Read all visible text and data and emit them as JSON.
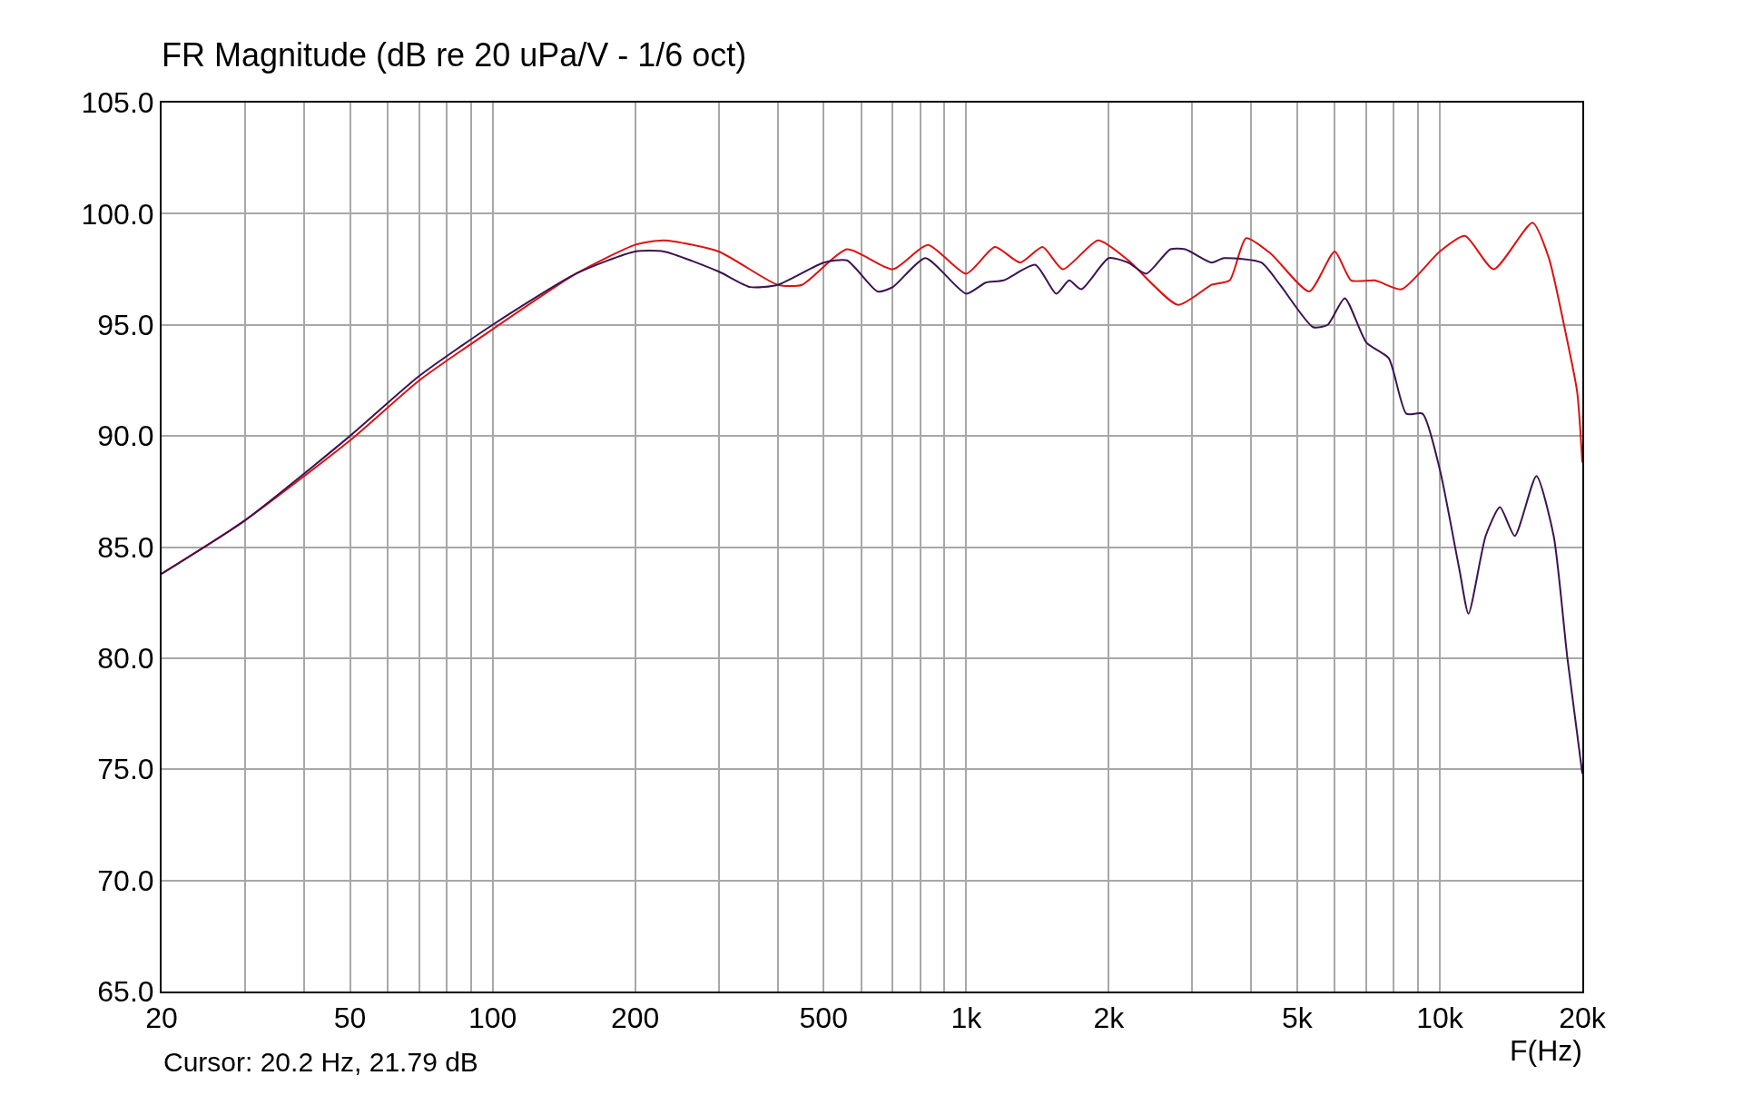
{
  "chart_data": {
    "type": "line",
    "title": "FR Magnitude (dB re 20 uPa/V - 1/6 oct)",
    "xlabel": "F(Hz)",
    "annotations": [
      "Cursor: 20.2 Hz, 21.79 dB"
    ],
    "log": "x",
    "grid": true,
    "line_style": "solid",
    "marker": "none",
    "xlim": [
      20,
      20000
    ],
    "ylim": [
      65,
      105
    ],
    "xticks": [
      20,
      {
        "value": 30,
        "label": null
      },
      {
        "value": 40,
        "label": null
      },
      50,
      {
        "value": 60,
        "label": null
      },
      {
        "value": 70,
        "label": null
      },
      {
        "value": 80,
        "label": null
      },
      {
        "value": 90,
        "label": null
      },
      100,
      200,
      {
        "value": 300,
        "label": null
      },
      {
        "value": 400,
        "label": null
      },
      500,
      {
        "value": 600,
        "label": null
      },
      {
        "value": 700,
        "label": null
      },
      {
        "value": 800,
        "label": null
      },
      {
        "value": 900,
        "label": null
      },
      {
        "value": 1000,
        "label": "1k"
      },
      {
        "value": 2000,
        "label": "2k"
      },
      {
        "value": 3000,
        "label": null
      },
      {
        "value": 4000,
        "label": null
      },
      {
        "value": 5000,
        "label": "5k"
      },
      {
        "value": 6000,
        "label": null
      },
      {
        "value": 7000,
        "label": null
      },
      {
        "value": 8000,
        "label": null
      },
      {
        "value": 9000,
        "label": null
      },
      {
        "value": 10000,
        "label": "10k"
      },
      {
        "value": 20000,
        "label": "20k"
      }
    ],
    "yticks": [
      {
        "value": 65,
        "label": "65.0"
      },
      {
        "value": 70,
        "label": "70.0"
      },
      {
        "value": 75,
        "label": "75.0"
      },
      {
        "value": 80,
        "label": "80.0"
      },
      {
        "value": 85,
        "label": "85.0"
      },
      {
        "value": 90,
        "label": "90.0"
      },
      {
        "value": 95,
        "label": "95.0"
      },
      {
        "value": 100,
        "label": "100.0"
      },
      {
        "value": 105,
        "label": "105.0"
      }
    ],
    "series": [
      {
        "color": "#dd1111",
        "x": [
          20,
          30,
          50,
          70,
          100,
          150,
          200,
          230,
          300,
          400,
          450,
          560,
          700,
          830,
          1000,
          1150,
          1300,
          1450,
          1600,
          1900,
          2200,
          2800,
          3300,
          3600,
          3900,
          4400,
          5300,
          6000,
          6500,
          7300,
          8300,
          10000,
          11300,
          13000,
          15700,
          17000,
          18500,
          19500,
          20000
        ],
        "values": [
          83.8,
          86.2,
          89.8,
          92.5,
          94.8,
          97.3,
          98.6,
          98.8,
          98.3,
          96.8,
          96.8,
          98.4,
          97.5,
          98.6,
          97.3,
          98.5,
          97.8,
          98.5,
          97.5,
          98.8,
          97.9,
          95.9,
          96.8,
          97.0,
          98.9,
          98.2,
          96.5,
          98.3,
          97.0,
          97.0,
          96.6,
          98.3,
          99.0,
          97.5,
          99.6,
          98.0,
          94.5,
          92.0,
          88.8
        ]
      },
      {
        "color": "#3c1450",
        "x": [
          20,
          30,
          50,
          70,
          100,
          150,
          200,
          230,
          300,
          350,
          400,
          500,
          560,
          650,
          700,
          820,
          1000,
          1100,
          1200,
          1400,
          1550,
          1650,
          1750,
          2000,
          2200,
          2400,
          2700,
          2900,
          3300,
          3500,
          4200,
          4600,
          5400,
          5800,
          6300,
          7000,
          7800,
          8500,
          9200,
          10000,
          11000,
          11500,
          12500,
          13400,
          14400,
          16000,
          17400,
          18600,
          20000
        ],
        "values": [
          83.8,
          86.2,
          90.0,
          92.7,
          95.0,
          97.3,
          98.3,
          98.3,
          97.4,
          96.7,
          96.8,
          97.8,
          97.9,
          96.5,
          96.7,
          98.0,
          96.4,
          96.9,
          97.0,
          97.7,
          96.4,
          97.0,
          96.6,
          98.0,
          97.8,
          97.3,
          98.4,
          98.4,
          97.8,
          98.0,
          97.8,
          96.8,
          94.9,
          95.0,
          96.2,
          94.2,
          93.5,
          91.0,
          91.0,
          88.5,
          84.0,
          82.0,
          85.5,
          86.8,
          85.5,
          88.2,
          85.5,
          80.0,
          74.8
        ]
      }
    ]
  }
}
